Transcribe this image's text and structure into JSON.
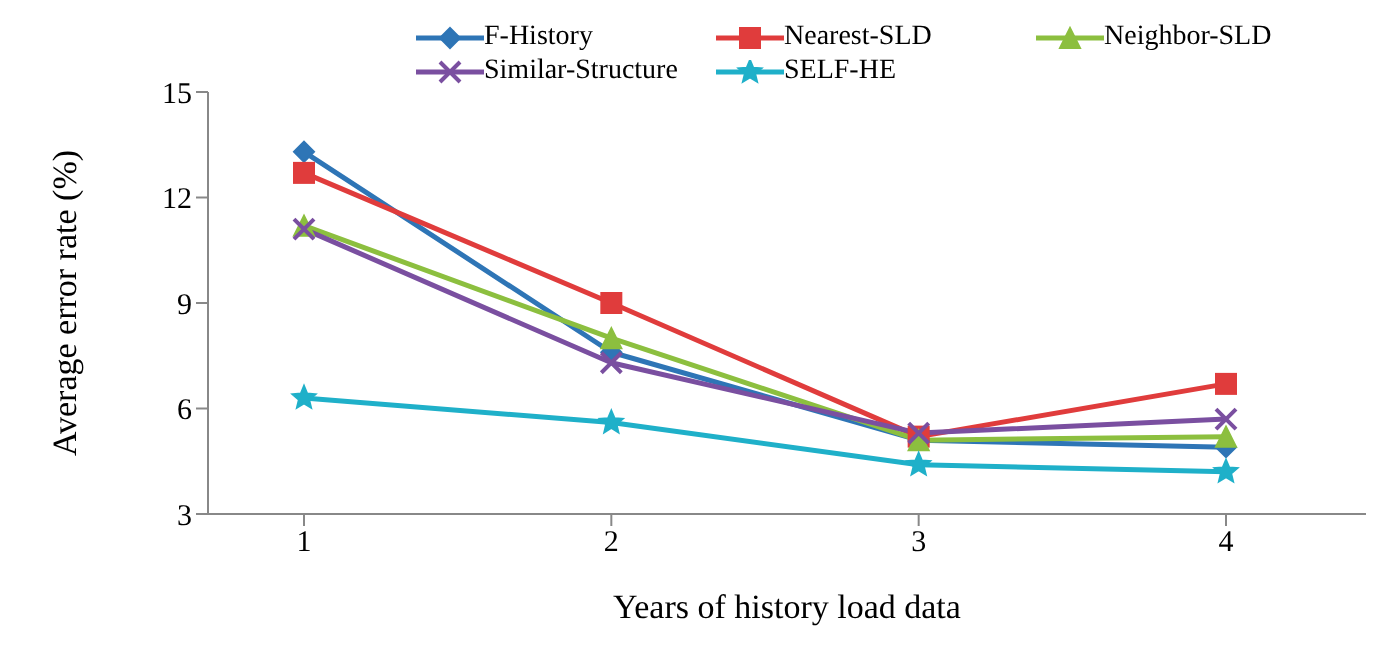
{
  "chart_data": {
    "type": "line",
    "xlabel": "Years of history load data",
    "ylabel": "Average error rate (%)",
    "categories": [
      "1",
      "2",
      "3",
      "4"
    ],
    "ylim": [
      3,
      15
    ],
    "yticks": [
      3,
      6,
      9,
      12,
      15
    ],
    "legend": "top",
    "series": [
      {
        "name": "F-History",
        "color": "#2e75b6",
        "marker": "diamond",
        "values": [
          13.3,
          7.6,
          5.1,
          4.9
        ]
      },
      {
        "name": "Nearest-SLD",
        "color": "#e03c3c",
        "marker": "square",
        "values": [
          12.7,
          9.0,
          5.2,
          6.7
        ]
      },
      {
        "name": "Neighbor-SLD",
        "color": "#8cbf3f",
        "marker": "triangle",
        "values": [
          11.2,
          8.0,
          5.1,
          5.2
        ]
      },
      {
        "name": "Similar-Structure",
        "color": "#7a4fa0",
        "marker": "cross",
        "values": [
          11.1,
          7.3,
          5.3,
          5.7
        ]
      },
      {
        "name": "SELF-HE",
        "color": "#1fb0c9",
        "marker": "star",
        "values": [
          6.3,
          5.6,
          4.4,
          4.2
        ]
      }
    ]
  }
}
